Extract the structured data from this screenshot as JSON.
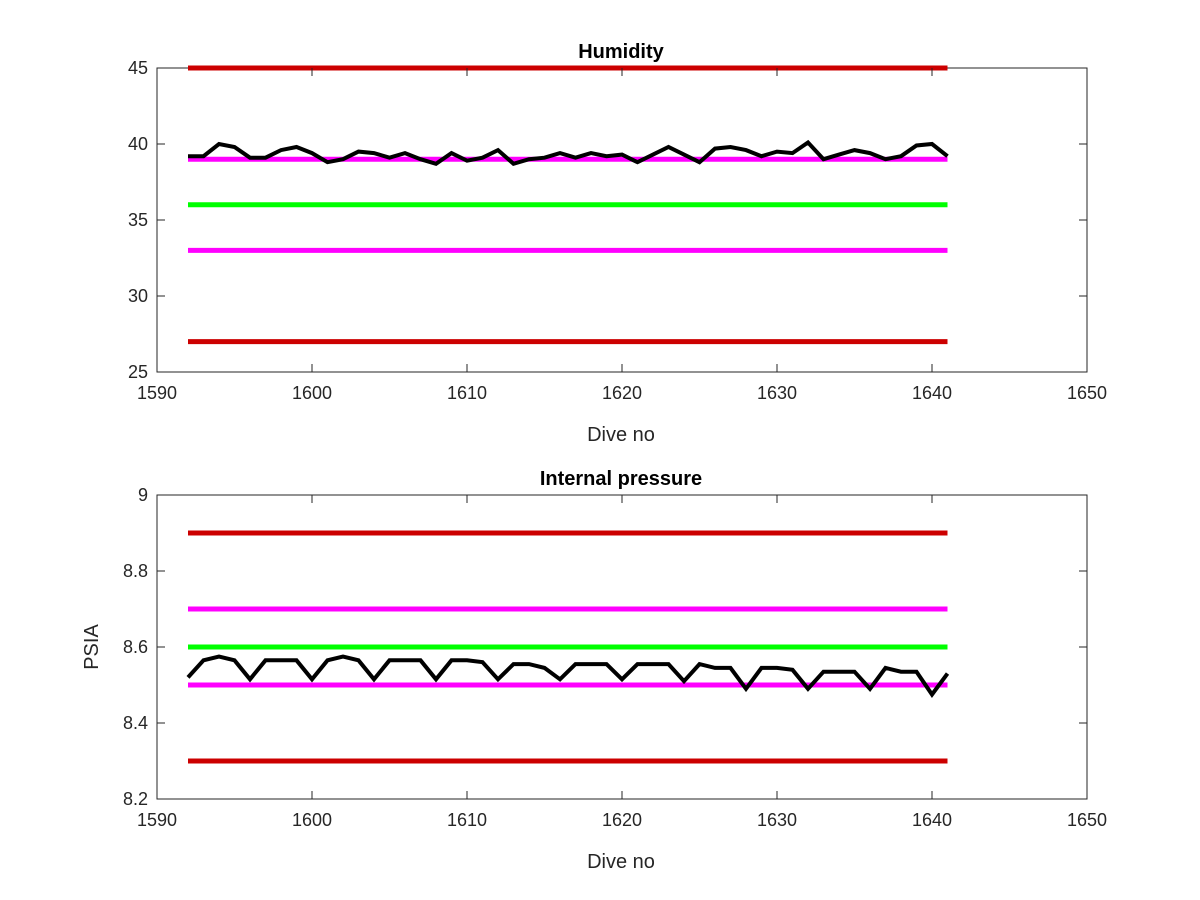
{
  "chart_data": [
    {
      "type": "line",
      "title": "Humidity",
      "xlabel": "Dive no",
      "ylabel": "",
      "xlim": [
        1590,
        1650
      ],
      "ylim": [
        25,
        45
      ],
      "xticks": [
        1590,
        1600,
        1610,
        1620,
        1630,
        1640,
        1650
      ],
      "yticks": [
        25,
        30,
        35,
        40,
        45
      ],
      "grid": false,
      "reference_lines": [
        {
          "y": 45,
          "x": [
            1592,
            1641
          ],
          "color": "#cc0000"
        },
        {
          "y": 39,
          "x": [
            1592,
            1641
          ],
          "color": "#ff00ff"
        },
        {
          "y": 36,
          "x": [
            1592,
            1641
          ],
          "color": "#00ff00"
        },
        {
          "y": 33,
          "x": [
            1592,
            1641
          ],
          "color": "#ff00ff"
        },
        {
          "y": 27,
          "x": [
            1592,
            1641
          ],
          "color": "#cc0000"
        }
      ],
      "series": [
        {
          "color": "#000000",
          "x": [
            1592,
            1593,
            1594,
            1595,
            1596,
            1597,
            1598,
            1599,
            1600,
            1601,
            1602,
            1603,
            1604,
            1605,
            1606,
            1607,
            1608,
            1609,
            1610,
            1611,
            1612,
            1613,
            1614,
            1615,
            1616,
            1617,
            1618,
            1619,
            1620,
            1621,
            1622,
            1623,
            1624,
            1625,
            1626,
            1627,
            1628,
            1629,
            1630,
            1631,
            1632,
            1633,
            1634,
            1635,
            1636,
            1637,
            1638,
            1639,
            1640,
            1641
          ],
          "values": [
            39.2,
            39.2,
            40.0,
            39.8,
            39.1,
            39.1,
            39.6,
            39.8,
            39.4,
            38.8,
            39.0,
            39.5,
            39.4,
            39.1,
            39.4,
            39.0,
            38.7,
            39.4,
            38.9,
            39.1,
            39.6,
            38.7,
            39.0,
            39.1,
            39.4,
            39.1,
            39.4,
            39.2,
            39.3,
            38.8,
            39.3,
            39.8,
            39.3,
            38.8,
            39.7,
            39.8,
            39.6,
            39.2,
            39.5,
            39.4,
            40.1,
            39.0,
            39.3,
            39.6,
            39.4,
            39.0,
            39.2,
            39.9,
            40.0,
            39.2
          ]
        }
      ]
    },
    {
      "type": "line",
      "title": "Internal pressure",
      "xlabel": "Dive no",
      "ylabel": "PSIA",
      "xlim": [
        1590,
        1650
      ],
      "ylim": [
        8.2,
        9
      ],
      "xticks": [
        1590,
        1600,
        1610,
        1620,
        1630,
        1640,
        1650
      ],
      "yticks": [
        8.2,
        8.4,
        8.6,
        8.8,
        9
      ],
      "grid": false,
      "reference_lines": [
        {
          "y": 8.9,
          "x": [
            1592,
            1641
          ],
          "color": "#cc0000"
        },
        {
          "y": 8.7,
          "x": [
            1592,
            1641
          ],
          "color": "#ff00ff"
        },
        {
          "y": 8.6,
          "x": [
            1592,
            1641
          ],
          "color": "#00ff00"
        },
        {
          "y": 8.5,
          "x": [
            1592,
            1641
          ],
          "color": "#ff00ff"
        },
        {
          "y": 8.3,
          "x": [
            1592,
            1641
          ],
          "color": "#cc0000"
        }
      ],
      "series": [
        {
          "color": "#000000",
          "x": [
            1592,
            1593,
            1594,
            1595,
            1596,
            1597,
            1598,
            1599,
            1600,
            1601,
            1602,
            1603,
            1604,
            1605,
            1606,
            1607,
            1608,
            1609,
            1610,
            1611,
            1612,
            1613,
            1614,
            1615,
            1616,
            1617,
            1618,
            1619,
            1620,
            1621,
            1622,
            1623,
            1624,
            1625,
            1626,
            1627,
            1628,
            1629,
            1630,
            1631,
            1632,
            1633,
            1634,
            1635,
            1636,
            1637,
            1638,
            1639,
            1640,
            1641
          ],
          "values": [
            8.52,
            8.565,
            8.575,
            8.565,
            8.515,
            8.565,
            8.565,
            8.565,
            8.515,
            8.565,
            8.575,
            8.565,
            8.515,
            8.565,
            8.565,
            8.565,
            8.515,
            8.565,
            8.565,
            8.56,
            8.515,
            8.555,
            8.555,
            8.545,
            8.515,
            8.555,
            8.555,
            8.555,
            8.515,
            8.555,
            8.555,
            8.555,
            8.51,
            8.555,
            8.545,
            8.545,
            8.49,
            8.545,
            8.545,
            8.54,
            8.49,
            8.535,
            8.535,
            8.535,
            8.49,
            8.545,
            8.535,
            8.535,
            8.475,
            8.53
          ]
        }
      ]
    }
  ]
}
